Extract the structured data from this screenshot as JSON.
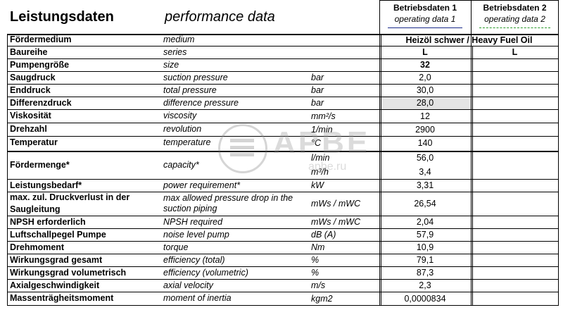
{
  "header": {
    "title_de": "Leistungsdaten",
    "title_en": "performance data",
    "col1_title": "Betriebsdaten 1",
    "col1_sub": "operating data 1",
    "col2_title": "Betriebsdaten 2",
    "col2_sub": "operating data 2"
  },
  "rows": [
    {
      "de": "Fördermedium",
      "en": "medium",
      "unit": "",
      "v1": "",
      "v2": ""
    },
    {
      "de": "Baureihe",
      "en": "series",
      "unit": "",
      "v1": "L",
      "v2": "L"
    },
    {
      "de": "Pumpengröße",
      "en": "size",
      "unit": "",
      "v1": "32",
      "v2": ""
    },
    {
      "de": "Saugdruck",
      "en": "suction pressure",
      "unit": "bar",
      "v1": "2,0",
      "v2": ""
    },
    {
      "de": "Enddruck",
      "en": "total pressure",
      "unit": "bar",
      "v1": "30,0",
      "v2": ""
    },
    {
      "de": "Differenzdruck",
      "en": "difference pressure",
      "unit": "bar",
      "v1": "28,0",
      "v2": ""
    },
    {
      "de": "Viskosität",
      "en": "viscosity",
      "unit": "mm²/s",
      "v1": "12",
      "v2": ""
    },
    {
      "de": "Drehzahl",
      "en": "revolution",
      "unit": "1/min",
      "v1": "2900",
      "v2": ""
    },
    {
      "de": "Temperatur",
      "en": "temperature",
      "unit": "°C",
      "v1": "140",
      "v2": ""
    },
    {
      "de": "Fördermenge*",
      "en": "capacity*",
      "unit": "l/min",
      "unit2": "m³/h",
      "v1": "56,0",
      "v1b": "3,4",
      "v2": ""
    },
    {
      "de": "Leistungsbedarf*",
      "en": "power requirement*",
      "unit": "kW",
      "v1": "3,31",
      "v2": ""
    },
    {
      "de": "max. zul. Druckverlust in der Saugleitung",
      "en": "max allowed pressure drop in the suction piping",
      "unit": "mWs / mWC",
      "v1": "26,54",
      "v2": ""
    },
    {
      "de": "NPSH erforderlich",
      "en": "NPSH required",
      "unit": "mWs / mWC",
      "v1": "2,04",
      "v2": ""
    },
    {
      "de": "Luftschallpegel Pumpe",
      "en": "noise level pump",
      "unit": "dB (A)",
      "v1": "57,9",
      "v2": ""
    },
    {
      "de": "Drehmoment",
      "en": "torque",
      "unit": "Nm",
      "v1": "10,9",
      "v2": ""
    },
    {
      "de": "Wirkungsgrad gesamt",
      "en": "efficiency (total)",
      "unit": "%",
      "v1": "79,1",
      "v2": ""
    },
    {
      "de": "Wirkungsgrad volumetrisch",
      "en": "efficiency (volumetric)",
      "unit": "%",
      "v1": "87,3",
      "v2": ""
    },
    {
      "de": "Axialgeschwindigkeit",
      "en": "axial velocity",
      "unit": "m/s",
      "v1": "2,3",
      "v2": ""
    },
    {
      "de": "Massenträgheitsmoment",
      "en": "moment of inertia",
      "unit": "kgm2",
      "v1": "0,0000834",
      "v2": ""
    }
  ],
  "fluid": "Heizöl schwer / Heavy Fuel Oil",
  "watermark": {
    "brand": "APBE",
    "url": "apbe.ru"
  }
}
